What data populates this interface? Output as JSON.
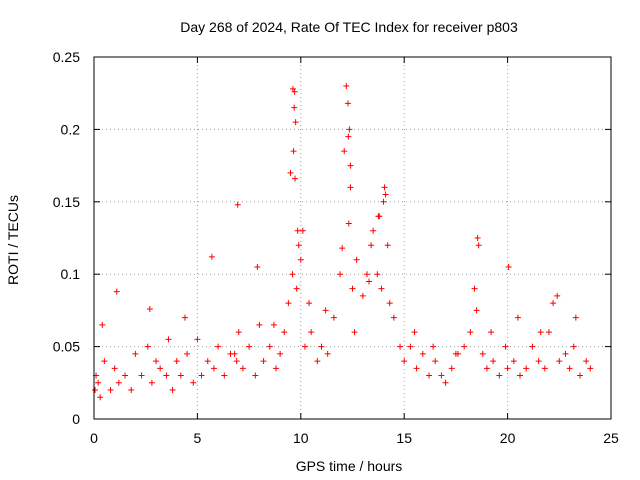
{
  "chart_data": {
    "type": "scatter",
    "title": "Day 268 of 2024, Rate Of TEC Index for receiver p803",
    "xlabel": "GPS time / hours",
    "ylabel": "ROTI / TECUs",
    "xlim": [
      0,
      25
    ],
    "ylim": [
      0,
      0.25
    ],
    "xticks": [
      0,
      5,
      10,
      15,
      20,
      25
    ],
    "xtick_labels": [
      "0",
      "5",
      "10",
      "15",
      "20",
      "25"
    ],
    "yticks": [
      0,
      0.05,
      0.1,
      0.15,
      0.2,
      0.25
    ],
    "ytick_labels": [
      "0",
      "0.05",
      "0.1",
      "0.15",
      "0.2",
      "0.25"
    ],
    "grid": true,
    "marker": "+",
    "series": [
      {
        "name": "ROTI",
        "color": "#ff0000",
        "x": [
          0.05,
          0.1,
          0.2,
          0.3,
          0.5,
          0.8,
          1.0,
          1.2,
          1.5,
          1.8,
          2.0,
          2.3,
          2.6,
          2.8,
          3.0,
          3.2,
          3.5,
          3.8,
          4.0,
          4.2,
          4.5,
          4.8,
          5.0,
          5.2,
          5.5,
          5.8,
          6.0,
          6.3,
          6.6,
          6.9,
          7.0,
          7.2,
          7.5,
          7.8,
          8.0,
          8.2,
          8.5,
          8.8,
          9.0,
          9.2,
          9.4,
          9.6,
          9.65,
          9.7,
          9.75,
          9.8,
          9.9,
          10.0,
          10.2,
          10.5,
          10.8,
          11.0,
          11.3,
          11.6,
          11.9,
          12.0,
          12.1,
          12.2,
          12.3,
          12.4,
          12.5,
          12.7,
          13.0,
          13.2,
          13.4,
          13.5,
          13.7,
          13.9,
          14.0,
          14.2,
          14.5,
          14.8,
          15.0,
          15.3,
          15.6,
          15.9,
          16.2,
          16.5,
          16.8,
          17.0,
          17.3,
          17.6,
          17.9,
          18.2,
          18.5,
          18.6,
          18.8,
          19.0,
          19.3,
          19.6,
          19.9,
          20.0,
          20.3,
          20.6,
          20.9,
          21.2,
          21.5,
          21.8,
          22.0,
          22.2,
          22.5,
          22.8,
          23.0,
          23.2,
          23.5,
          23.8,
          24.0,
          0.4,
          1.1,
          2.7,
          3.6,
          4.4,
          5.7,
          6.8,
          7.9,
          8.7,
          9.5,
          10.1,
          10.4,
          11.2,
          12.6,
          13.3,
          13.8,
          14.3,
          15.5,
          16.4,
          17.5,
          18.4,
          19.2,
          20.5,
          21.6,
          22.4,
          23.3,
          9.62,
          9.68,
          9.72,
          12.28,
          12.35,
          12.4,
          12.32,
          14.05,
          14.1,
          6.95,
          18.55,
          20.05,
          9.85,
          13.75
        ],
        "y": [
          0.02,
          0.03,
          0.025,
          0.015,
          0.04,
          0.02,
          0.035,
          0.025,
          0.03,
          0.02,
          0.045,
          0.03,
          0.05,
          0.025,
          0.04,
          0.035,
          0.03,
          0.02,
          0.04,
          0.03,
          0.045,
          0.025,
          0.055,
          0.03,
          0.04,
          0.035,
          0.05,
          0.03,
          0.045,
          0.04,
          0.06,
          0.035,
          0.05,
          0.03,
          0.065,
          0.04,
          0.05,
          0.035,
          0.045,
          0.06,
          0.08,
          0.1,
          0.185,
          0.226,
          0.205,
          0.09,
          0.12,
          0.11,
          0.05,
          0.06,
          0.04,
          0.05,
          0.045,
          0.07,
          0.1,
          0.118,
          0.185,
          0.23,
          0.195,
          0.16,
          0.09,
          0.11,
          0.085,
          0.1,
          0.12,
          0.13,
          0.1,
          0.09,
          0.15,
          0.12,
          0.07,
          0.05,
          0.04,
          0.05,
          0.035,
          0.045,
          0.03,
          0.04,
          0.03,
          0.025,
          0.035,
          0.045,
          0.05,
          0.06,
          0.075,
          0.12,
          0.045,
          0.035,
          0.04,
          0.03,
          0.05,
          0.035,
          0.04,
          0.03,
          0.035,
          0.05,
          0.04,
          0.035,
          0.06,
          0.08,
          0.04,
          0.045,
          0.035,
          0.05,
          0.03,
          0.04,
          0.035,
          0.065,
          0.088,
          0.076,
          0.055,
          0.07,
          0.112,
          0.045,
          0.105,
          0.065,
          0.17,
          0.13,
          0.08,
          0.075,
          0.06,
          0.095,
          0.14,
          0.08,
          0.06,
          0.05,
          0.045,
          0.09,
          0.06,
          0.07,
          0.06,
          0.085,
          0.07,
          0.228,
          0.215,
          0.166,
          0.218,
          0.2,
          0.175,
          0.135,
          0.16,
          0.155,
          0.148,
          0.125,
          0.105,
          0.13,
          0.14
        ]
      }
    ]
  }
}
